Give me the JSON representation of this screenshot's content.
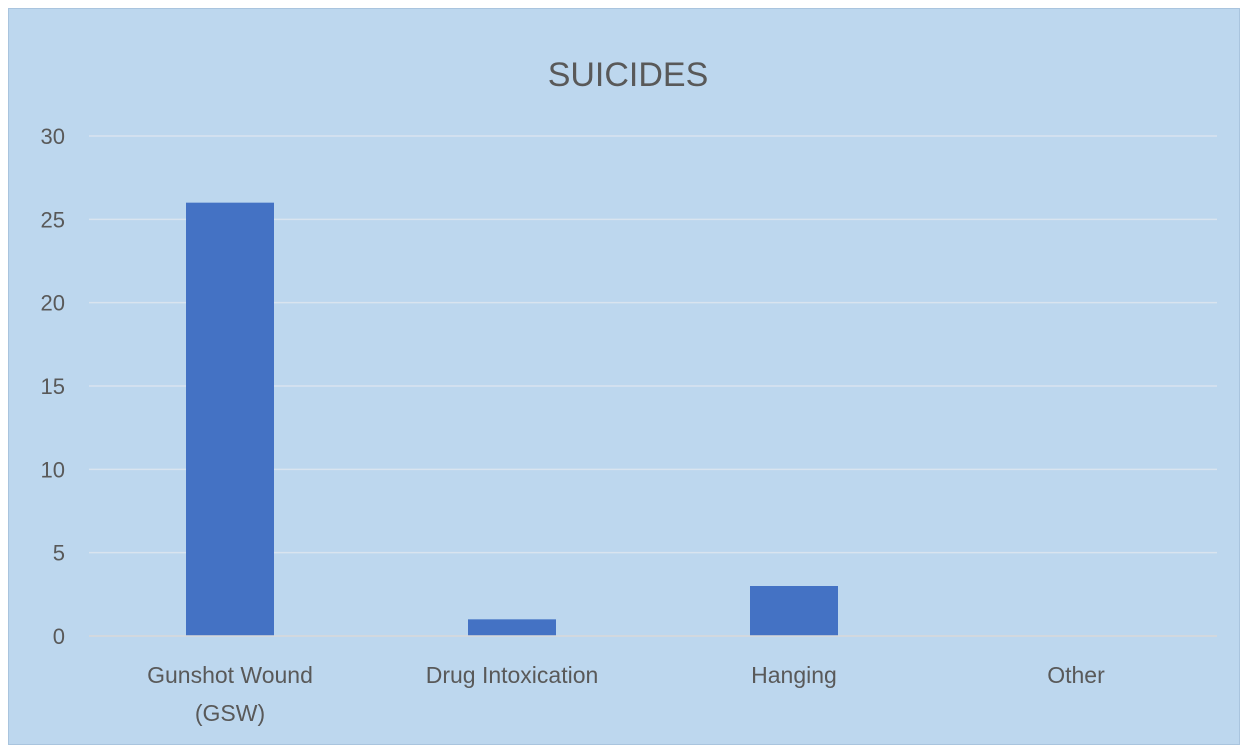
{
  "chart_data": {
    "type": "bar",
    "title": "SUICIDES",
    "xlabel": "",
    "ylabel": "",
    "categories": [
      [
        "Gunshot Wound",
        "(GSW)"
      ],
      [
        "Drug Intoxication"
      ],
      [
        "Hanging"
      ],
      [
        "Other"
      ]
    ],
    "values": [
      26,
      1,
      3,
      0
    ],
    "ylim": [
      0,
      30
    ],
    "yticks": [
      0,
      5,
      10,
      15,
      20,
      25,
      30
    ],
    "grid": true,
    "legend": "none",
    "colors": {
      "bar": "#4472c4",
      "background": "#bdd7ee"
    }
  }
}
